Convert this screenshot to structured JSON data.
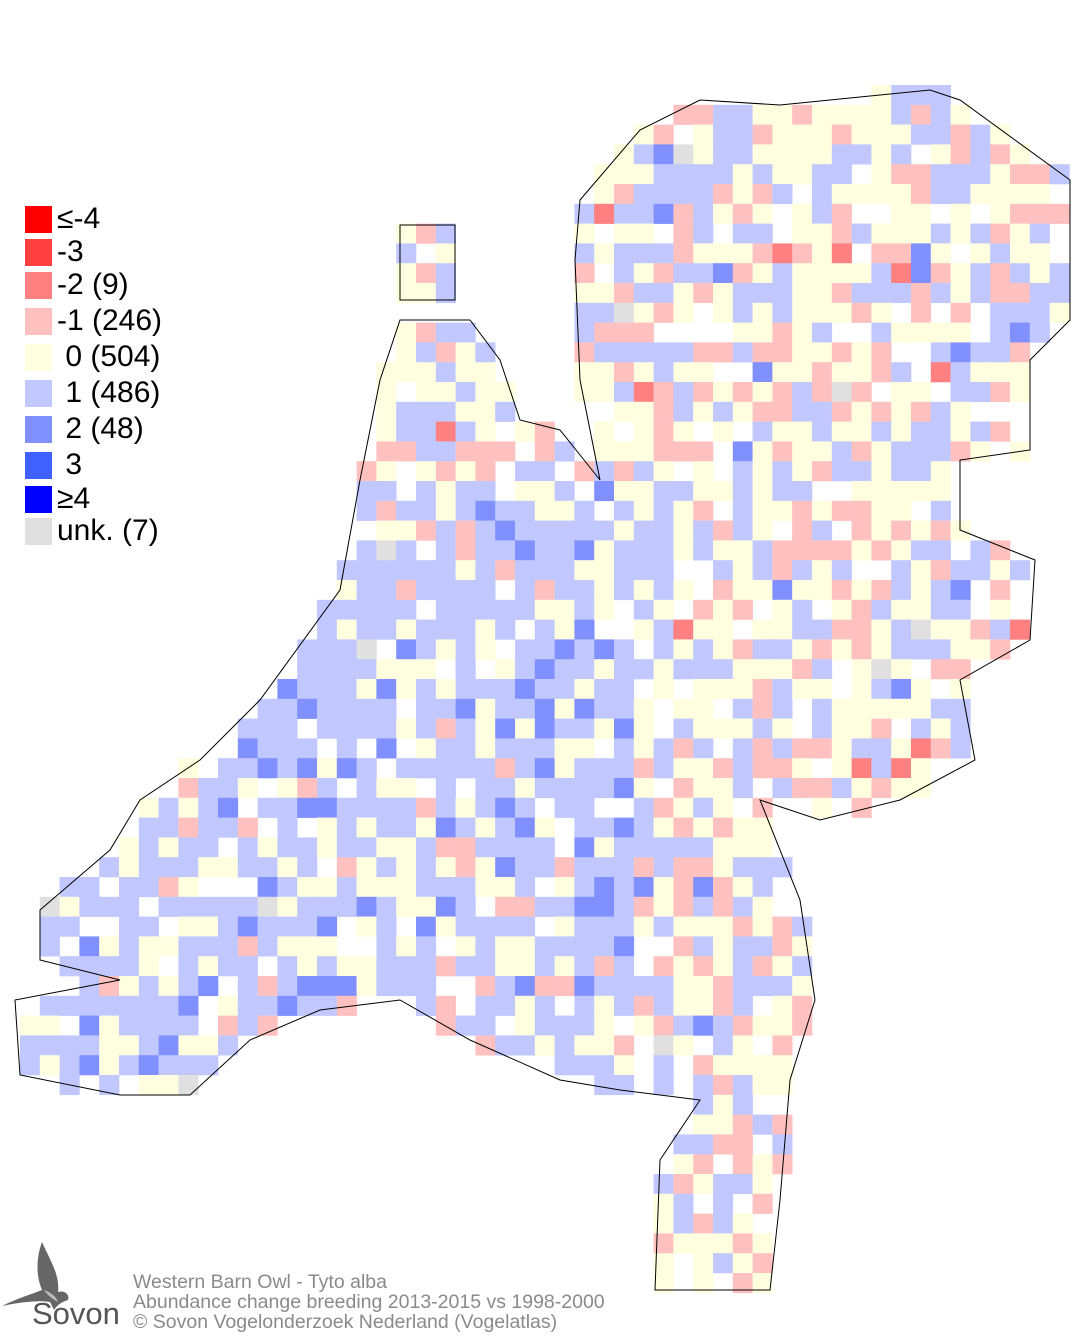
{
  "legend": {
    "items": [
      {
        "label": "≤-4",
        "color": "#ff0000"
      },
      {
        "label": "-3",
        "color": "#ff4040"
      },
      {
        "label": "-2 (9)",
        "color": "#ff8080"
      },
      {
        "label": "-1 (246)",
        "color": "#ffc0c0"
      },
      {
        "label": " 0 (504)",
        "color": "#ffffe0"
      },
      {
        "label": " 1 (486)",
        "color": "#c0c8ff"
      },
      {
        "label": " 2 (48)",
        "color": "#8090ff"
      },
      {
        "label": " 3",
        "color": "#4060ff"
      },
      {
        "label": "≥4",
        "color": "#0000ff"
      },
      {
        "label": "unk. (7)",
        "color": "#e0e0e0"
      }
    ]
  },
  "footer": {
    "species": "Western Barn Owl - Tyto alba",
    "subtitle": "Abundance change breeding  2013-2015 vs 1998-2000",
    "copyright": "© Sovon Vogelonderzoek Nederland (Vogelatlas)"
  },
  "logo": {
    "text": "Sovon"
  }
}
